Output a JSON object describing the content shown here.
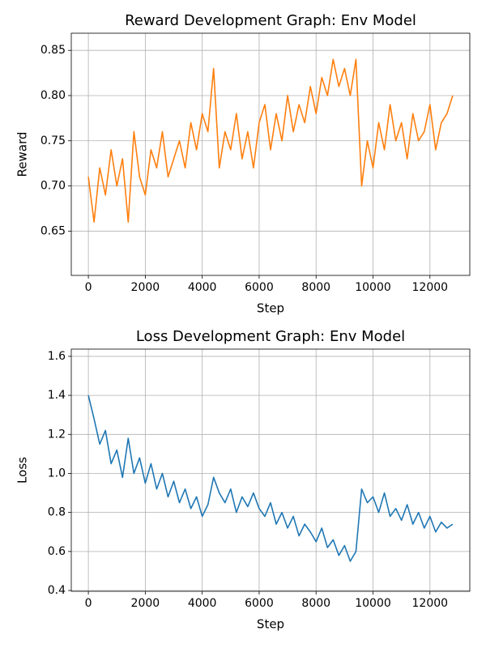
{
  "chart_data": [
    {
      "type": "line",
      "title": "Reward Development Graph: Env Model",
      "xlabel": "Step",
      "ylabel": "Reward",
      "x": [
        0,
        200,
        400,
        600,
        800,
        1000,
        1200,
        1400,
        1600,
        1800,
        2000,
        2200,
        2400,
        2600,
        2800,
        3000,
        3200,
        3400,
        3600,
        3800,
        4000,
        4200,
        4400,
        4600,
        4800,
        5000,
        5200,
        5400,
        5600,
        5800,
        6000,
        6200,
        6400,
        6600,
        6800,
        7000,
        7200,
        7400,
        7600,
        7800,
        8000,
        8200,
        8400,
        8600,
        8800,
        9000,
        9200,
        9400,
        9600,
        9800,
        10000,
        10200,
        10400,
        10600,
        10800,
        11000,
        11200,
        11400,
        11600,
        11800,
        12000,
        12200,
        12400,
        12600,
        12800
      ],
      "values": [
        0.71,
        0.66,
        0.72,
        0.69,
        0.74,
        0.7,
        0.73,
        0.66,
        0.76,
        0.71,
        0.69,
        0.74,
        0.72,
        0.76,
        0.71,
        0.73,
        0.75,
        0.72,
        0.77,
        0.74,
        0.78,
        0.76,
        0.83,
        0.72,
        0.76,
        0.74,
        0.78,
        0.73,
        0.76,
        0.72,
        0.77,
        0.79,
        0.74,
        0.78,
        0.75,
        0.8,
        0.76,
        0.79,
        0.77,
        0.81,
        0.78,
        0.82,
        0.8,
        0.84,
        0.81,
        0.83,
        0.8,
        0.84,
        0.7,
        0.75,
        0.72,
        0.77,
        0.74,
        0.79,
        0.75,
        0.77,
        0.73,
        0.78,
        0.75,
        0.76,
        0.79,
        0.74,
        0.77,
        0.78,
        0.8
      ],
      "color": "#ff7f0e",
      "xlim": [
        -600,
        13400
      ],
      "xticks": [
        0,
        2000,
        4000,
        6000,
        8000,
        10000,
        12000
      ],
      "ylim": [
        0.601,
        0.869
      ],
      "yticks": [
        0.65,
        {
          "value": 0.7,
          "label": "0.70"
        },
        0.75,
        {
          "value": 0.8,
          "label": "0.80"
        },
        0.85
      ],
      "grid": true
    },
    {
      "type": "line",
      "title": "Loss Development Graph: Env Model",
      "xlabel": "Step",
      "ylabel": "Loss",
      "x": [
        0,
        200,
        400,
        600,
        800,
        1000,
        1200,
        1400,
        1600,
        1800,
        2000,
        2200,
        2400,
        2600,
        2800,
        3000,
        3200,
        3400,
        3600,
        3800,
        4000,
        4200,
        4400,
        4600,
        4800,
        5000,
        5200,
        5400,
        5600,
        5800,
        6000,
        6200,
        6400,
        6600,
        6800,
        7000,
        7200,
        7400,
        7600,
        7800,
        8000,
        8200,
        8400,
        8600,
        8800,
        9000,
        9200,
        9400,
        9600,
        9800,
        10000,
        10200,
        10400,
        10600,
        10800,
        11000,
        11200,
        11400,
        11600,
        11800,
        12000,
        12200,
        12400,
        12600,
        12800
      ],
      "values": [
        1.4,
        1.28,
        1.15,
        1.22,
        1.05,
        1.12,
        0.98,
        1.18,
        1.0,
        1.08,
        0.95,
        1.05,
        0.92,
        1.0,
        0.88,
        0.96,
        0.85,
        0.92,
        0.82,
        0.88,
        0.78,
        0.84,
        0.98,
        0.9,
        0.85,
        0.92,
        0.8,
        0.88,
        0.83,
        0.9,
        0.82,
        0.78,
        0.85,
        0.74,
        0.8,
        0.72,
        0.78,
        0.68,
        0.74,
        0.7,
        0.65,
        0.72,
        0.62,
        0.66,
        0.58,
        0.63,
        0.55,
        0.6,
        0.92,
        0.85,
        0.88,
        0.8,
        0.9,
        0.78,
        0.82,
        0.76,
        0.84,
        0.74,
        0.8,
        0.72,
        0.78,
        0.7,
        0.75,
        0.72,
        0.74
      ],
      "color": "#1f77b4",
      "xlim": [
        -600,
        13400
      ],
      "xticks": [
        0,
        2000,
        4000,
        6000,
        8000,
        10000,
        12000
      ],
      "ylim": [
        0.396,
        1.637
      ],
      "yticks": [
        0.4,
        0.6,
        0.8,
        {
          "value": 1.0,
          "label": "1.0"
        },
        1.2,
        1.4,
        1.6
      ],
      "grid": true
    }
  ]
}
